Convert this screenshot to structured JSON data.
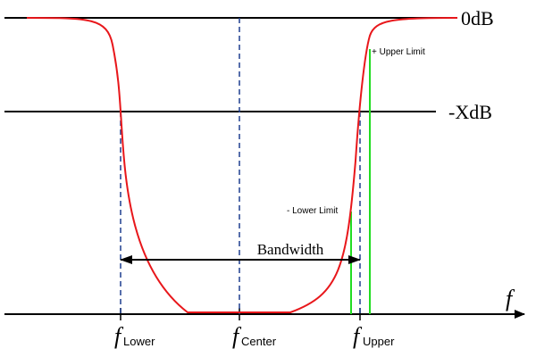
{
  "diagram": {
    "db_labels": {
      "zero_db": "0dB",
      "minus_x_db": "-XdB"
    },
    "axis_label": "f",
    "frequency_labels": {
      "lower": {
        "symbol": "f",
        "subscript": "Lower"
      },
      "center": {
        "symbol": "f",
        "subscript": "Center"
      },
      "upper": {
        "symbol": "f",
        "subscript": "Upper"
      }
    },
    "bandwidth_label": "Bandwidth",
    "tolerance_labels": {
      "upper_limit": "+ Upper Limit",
      "lower_limit": "- Lower Limit"
    },
    "colors": {
      "curve": "#e8171b",
      "reference_lines": "#000000",
      "marker_lines": "#1f3f8f",
      "limit_lines": "#22dd22",
      "background": "#ffffff"
    }
  }
}
